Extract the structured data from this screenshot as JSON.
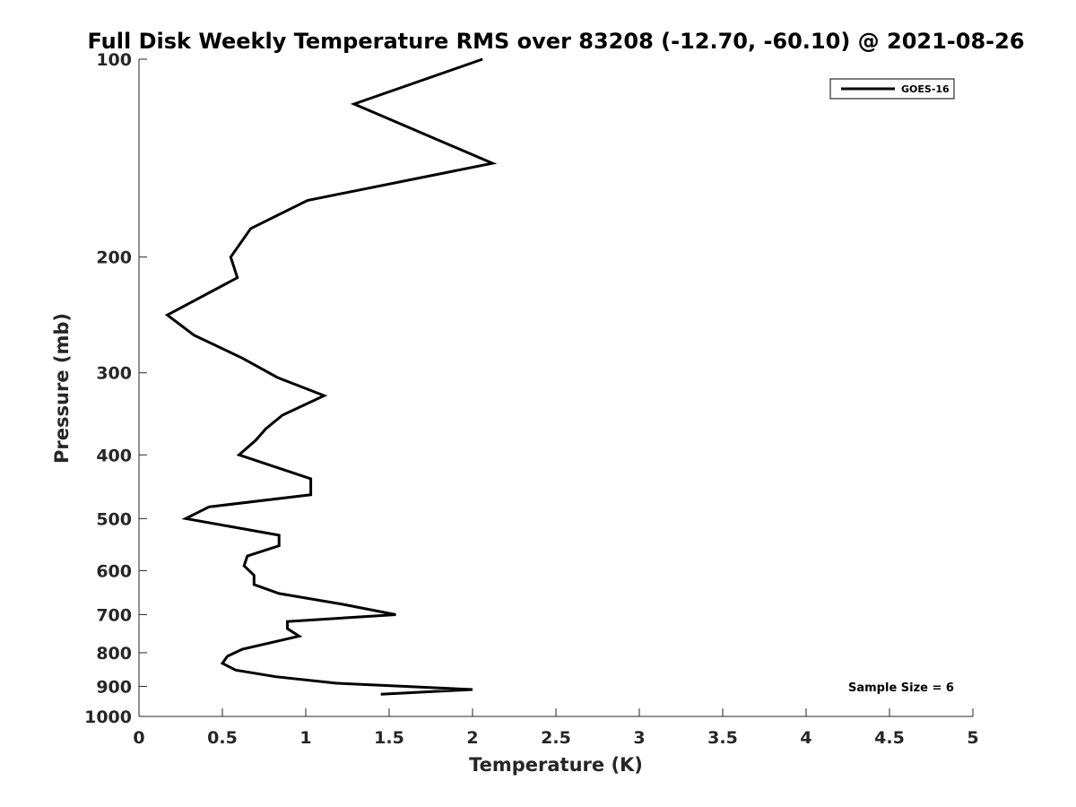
{
  "chart_data": {
    "type": "line",
    "title": "Full Disk Weekly Temperature RMS over 83208 (-12.70, -60.10) @ 2021-08-26",
    "xlabel": "Temperature (K)",
    "ylabel": "Pressure (mb)",
    "xlim": [
      0,
      5
    ],
    "ylim": [
      100,
      1000
    ],
    "y_scale": "log",
    "y_reversed": true,
    "x_ticks": [
      0,
      0.5,
      1,
      1.5,
      2,
      2.5,
      3,
      3.5,
      4,
      4.5,
      5
    ],
    "x_tick_labels": [
      "0",
      "0.5",
      "1",
      "1.5",
      "2",
      "2.5",
      "3",
      "3.5",
      "4",
      "4.5",
      "5"
    ],
    "y_ticks": [
      100,
      200,
      300,
      400,
      500,
      600,
      700,
      800,
      900,
      1000
    ],
    "y_tick_labels": [
      "100",
      "200",
      "300",
      "400",
      "500",
      "600",
      "700",
      "800",
      "900",
      "1000"
    ],
    "grid": false,
    "legend_position": "top-right",
    "annotation": "Sample Size = 6",
    "color": "#000000",
    "series": [
      {
        "name": "GOES-16",
        "x": [
          2.06,
          1.29,
          2.12,
          1.01,
          0.67,
          0.55,
          0.59,
          0.17,
          0.33,
          0.62,
          0.83,
          1.11,
          0.86,
          0.76,
          0.7,
          0.6,
          1.03,
          1.03,
          0.42,
          0.28,
          0.84,
          0.84,
          0.65,
          0.63,
          0.69,
          0.69,
          0.84,
          1.22,
          1.54,
          0.89,
          0.89,
          0.96,
          0.62,
          0.53,
          0.5,
          0.58,
          0.82,
          1.18,
          2.0,
          1.45
        ],
        "y": [
          100,
          117,
          144,
          164,
          181,
          200,
          215,
          245,
          263,
          285,
          305,
          325,
          348,
          365,
          380,
          400,
          435,
          460,
          480,
          500,
          530,
          550,
          570,
          590,
          610,
          630,
          650,
          675,
          700,
          717,
          735,
          755,
          790,
          810,
          830,
          850,
          870,
          890,
          910,
          925
        ]
      }
    ]
  }
}
